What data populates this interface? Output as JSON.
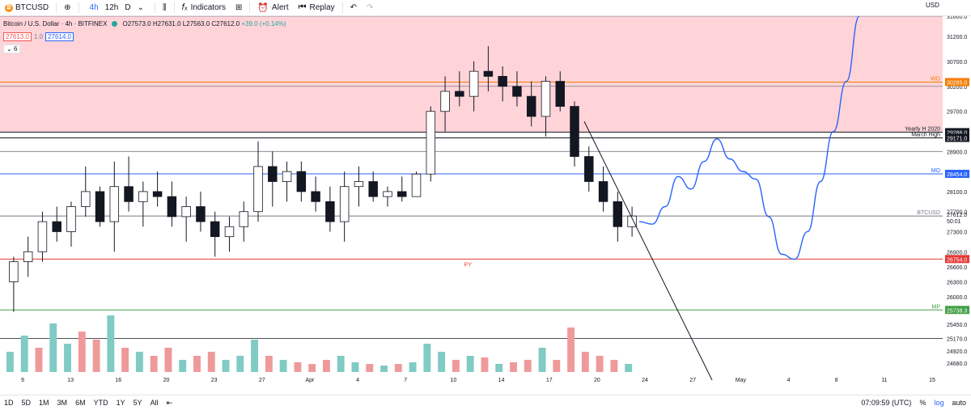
{
  "toolbar": {
    "symbol": "BTCUSD",
    "symbol_icon": "bitcoin-icon",
    "timeframes": [
      "4h",
      "12h",
      "D"
    ],
    "active_timeframe": "4h",
    "indicators_label": "Indicators",
    "alert_label": "Alert",
    "replay_label": "Replay"
  },
  "legend": {
    "title": "Bitcoin / U.S. Dollar · 4h · BITFINEX",
    "open": "O27573.0",
    "high": "H27631.0",
    "low": "L27563.0",
    "close": "C27612.0",
    "change": "+39.0 (+0.14%)",
    "bid": "27613.0",
    "spread": "1.0",
    "ask": "27614.0",
    "indicators_count": "6"
  },
  "currency_label": "USD",
  "chart_data": {
    "type": "line",
    "title": "Bitcoin / U.S. Dollar · 4h · BITFINEX",
    "symbol": "BTCUSD",
    "y_range": [
      24500,
      31600
    ],
    "y_ticks": [
      24680,
      24920,
      25170,
      25450,
      25738.3,
      26000,
      26300,
      26600,
      26900,
      27300,
      27700,
      28100,
      28500,
      28900,
      29300,
      29700,
      30200,
      30700,
      31200,
      31600
    ],
    "x_ticks": [
      "9",
      "13",
      "16",
      "20",
      "23",
      "27",
      "Apr",
      "4",
      "7",
      "10",
      "14",
      "17",
      "20",
      "24",
      "27",
      "May",
      "4",
      "8",
      "11",
      "15"
    ],
    "last_price": 27612.0,
    "price_label_sub": "50:01",
    "levels": [
      {
        "price": 31600,
        "label": "",
        "color": "#787b86"
      },
      {
        "price": 30285.0,
        "label": "WO",
        "color": "#f57c00"
      },
      {
        "price": 30200,
        "label": "",
        "color": "#787b86"
      },
      {
        "price": 29286.0,
        "label": "Yearly H 2020",
        "color": "#131722"
      },
      {
        "price": 29171.0,
        "label": "March High",
        "color": "#131722"
      },
      {
        "price": 28900,
        "label": "",
        "color": "#787b86"
      },
      {
        "price": 28454.0,
        "label": "MO",
        "color": "#2962ff"
      },
      {
        "price": 27612.0,
        "label": "BTCUSD",
        "color": "#787b86"
      },
      {
        "price": 26754.0,
        "label": "PY",
        "color": "#e53935"
      },
      {
        "price": 25738.3,
        "label": "MP",
        "color": "#43a047"
      },
      {
        "price": 25170,
        "label": "",
        "color": "#131722"
      }
    ],
    "zone": {
      "from": 29286.0,
      "to": 31600,
      "color": "#ffcdd2"
    },
    "projection": [
      [
        0,
        27500
      ],
      [
        1,
        27450
      ],
      [
        2,
        27800
      ],
      [
        3,
        28400
      ],
      [
        4,
        28150
      ],
      [
        5,
        28700
      ],
      [
        6,
        29150
      ],
      [
        7,
        28750
      ],
      [
        8,
        28500
      ],
      [
        9,
        28350
      ],
      [
        10,
        27600
      ],
      [
        11,
        26850
      ],
      [
        12,
        26750
      ],
      [
        13,
        27300
      ],
      [
        14,
        28300
      ],
      [
        15,
        29300
      ],
      [
        16,
        30300
      ],
      [
        17,
        31600
      ]
    ],
    "candles": [
      [
        26300,
        26800,
        25700,
        26700
      ],
      [
        26700,
        27200,
        26400,
        26900
      ],
      [
        26900,
        27700,
        26700,
        27500
      ],
      [
        27500,
        27800,
        27100,
        27300
      ],
      [
        27300,
        27900,
        27000,
        27800
      ],
      [
        27800,
        28600,
        27600,
        28100
      ],
      [
        28100,
        28200,
        27400,
        27500
      ],
      [
        27500,
        28700,
        26900,
        28200
      ],
      [
        28200,
        28800,
        27700,
        27900
      ],
      [
        27900,
        28300,
        27400,
        28100
      ],
      [
        28100,
        28500,
        27800,
        28000
      ],
      [
        28000,
        28300,
        27400,
        27600
      ],
      [
        27600,
        28000,
        27100,
        27800
      ],
      [
        27800,
        28100,
        27300,
        27500
      ],
      [
        27500,
        27700,
        26800,
        27200
      ],
      [
        27200,
        27600,
        26900,
        27400
      ],
      [
        27400,
        27900,
        27100,
        27700
      ],
      [
        27700,
        29100,
        27500,
        28600
      ],
      [
        28600,
        28900,
        27800,
        28300
      ],
      [
        28300,
        28700,
        27900,
        28500
      ],
      [
        28500,
        28700,
        27900,
        28100
      ],
      [
        28100,
        28400,
        27700,
        27900
      ],
      [
        27900,
        28200,
        27300,
        27500
      ],
      [
        27500,
        28500,
        27100,
        28200
      ],
      [
        28200,
        28600,
        27800,
        28300
      ],
      [
        28300,
        28500,
        27900,
        28000
      ],
      [
        28000,
        28200,
        27800,
        28100
      ],
      [
        28100,
        28400,
        27900,
        28000
      ],
      [
        28000,
        28500,
        28000,
        28450
      ],
      [
        28450,
        29800,
        28300,
        29700
      ],
      [
        29700,
        30400,
        29300,
        30100
      ],
      [
        30100,
        30500,
        29800,
        30000
      ],
      [
        30000,
        30700,
        29700,
        30500
      ],
      [
        30500,
        31000,
        30100,
        30400
      ],
      [
        30400,
        30600,
        29900,
        30200
      ],
      [
        30200,
        30500,
        29800,
        30000
      ],
      [
        30000,
        30300,
        29400,
        29600
      ],
      [
        29600,
        30400,
        29200,
        30300
      ],
      [
        30300,
        30500,
        29700,
        29800
      ],
      [
        29800,
        29900,
        28600,
        28800
      ],
      [
        28800,
        29000,
        28100,
        28300
      ],
      [
        28300,
        28600,
        27700,
        27900
      ],
      [
        27900,
        28100,
        27100,
        27400
      ],
      [
        27400,
        27800,
        27200,
        27612
      ]
    ],
    "volumes": [
      {
        "v": 0.25,
        "up": true
      },
      {
        "v": 0.45,
        "up": true
      },
      {
        "v": 0.3,
        "up": false
      },
      {
        "v": 0.6,
        "up": true
      },
      {
        "v": 0.35,
        "up": true
      },
      {
        "v": 0.5,
        "up": false
      },
      {
        "v": 0.4,
        "up": false
      },
      {
        "v": 0.7,
        "up": true
      },
      {
        "v": 0.3,
        "up": false
      },
      {
        "v": 0.25,
        "up": true
      },
      {
        "v": 0.2,
        "up": false
      },
      {
        "v": 0.3,
        "up": false
      },
      {
        "v": 0.15,
        "up": true
      },
      {
        "v": 0.2,
        "up": false
      },
      {
        "v": 0.25,
        "up": false
      },
      {
        "v": 0.15,
        "up": true
      },
      {
        "v": 0.2,
        "up": true
      },
      {
        "v": 0.4,
        "up": true
      },
      {
        "v": 0.2,
        "up": false
      },
      {
        "v": 0.15,
        "up": true
      },
      {
        "v": 0.12,
        "up": false
      },
      {
        "v": 0.1,
        "up": false
      },
      {
        "v": 0.15,
        "up": false
      },
      {
        "v": 0.2,
        "up": true
      },
      {
        "v": 0.12,
        "up": true
      },
      {
        "v": 0.1,
        "up": false
      },
      {
        "v": 0.08,
        "up": true
      },
      {
        "v": 0.1,
        "up": false
      },
      {
        "v": 0.12,
        "up": true
      },
      {
        "v": 0.35,
        "up": true
      },
      {
        "v": 0.25,
        "up": true
      },
      {
        "v": 0.15,
        "up": false
      },
      {
        "v": 0.2,
        "up": true
      },
      {
        "v": 0.18,
        "up": false
      },
      {
        "v": 0.1,
        "up": true
      },
      {
        "v": 0.12,
        "up": false
      },
      {
        "v": 0.15,
        "up": false
      },
      {
        "v": 0.3,
        "up": true
      },
      {
        "v": 0.15,
        "up": false
      },
      {
        "v": 0.55,
        "up": false
      },
      {
        "v": 0.25,
        "up": false
      },
      {
        "v": 0.2,
        "up": false
      },
      {
        "v": 0.15,
        "up": false
      },
      {
        "v": 0.1,
        "up": true
      }
    ]
  },
  "bottombar": {
    "ranges": [
      "1D",
      "5D",
      "1M",
      "3M",
      "6M",
      "YTD",
      "1Y",
      "5Y",
      "All"
    ],
    "time": "07:09:59 (UTC)",
    "percent": "%",
    "log": "log",
    "auto": "auto"
  },
  "colors": {
    "up": "#26a69a",
    "down": "#ef5350",
    "candle": "#131722",
    "projection": "#2962ff"
  }
}
